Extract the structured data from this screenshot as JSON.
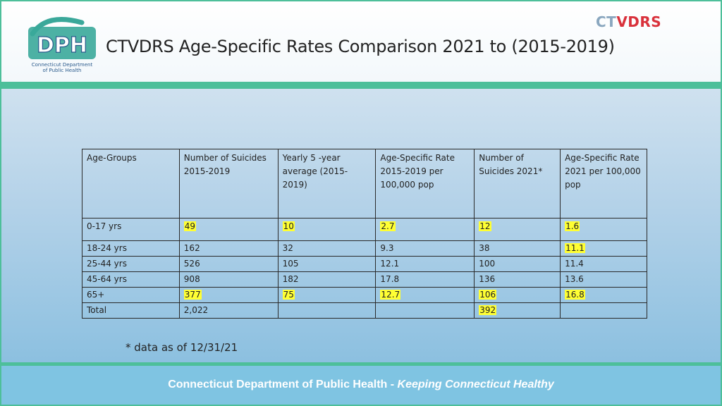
{
  "header": {
    "title": "CTVDRS Age-Specific Rates Comparison  2021 to (2015-2019)",
    "logo_letters": "DPH",
    "logo_arc_text": "Keeping Connecticut Healthy",
    "logo_caption_line1": "Connecticut Department",
    "logo_caption_line2": "of Public Health",
    "ctvdrs_logo_ct": "CT",
    "ctvdrs_logo_vdrs": "VDRS"
  },
  "table": {
    "headers": [
      "Age-Groups",
      "Number of Suicides 2015-2019",
      "Yearly 5 -year average (2015-2019)",
      "Age-Specific Rate 2015-2019 per 100,000 pop",
      "Number of Suicides 2021*",
      "Age-Specific Rate 2021 per 100,000 pop"
    ],
    "rows": [
      [
        "0-17 yrs",
        "49",
        "10",
        "2.7",
        "12",
        "1.6"
      ],
      [
        "18-24 yrs",
        "162",
        "32",
        "9.3",
        "38",
        "11.1"
      ],
      [
        "25-44 yrs",
        "526",
        "105",
        "12.1",
        "100",
        "11.4"
      ],
      [
        "45-64 yrs",
        "908",
        "182",
        "17.8",
        "136",
        "13.6"
      ],
      [
        "65+",
        "377",
        "75",
        "12.7",
        "106",
        "16.8"
      ],
      [
        "Total",
        "2,022",
        "",
        "",
        "392",
        ""
      ]
    ],
    "highlight_color": "#ffff33"
  },
  "footnote": "* data as of 12/31/21",
  "footer": {
    "org": "Connecticut Department of Public Health",
    "separator": " - ",
    "tagline": "Keeping Connecticut Healthy"
  },
  "colors": {
    "accent_green": "#4dbf9a",
    "footer_blue": "#7fc4e2",
    "logo_teal": "#3aa89a",
    "logo_navy": "#2a5a8c",
    "ctvdrs_red": "#d9313b"
  }
}
